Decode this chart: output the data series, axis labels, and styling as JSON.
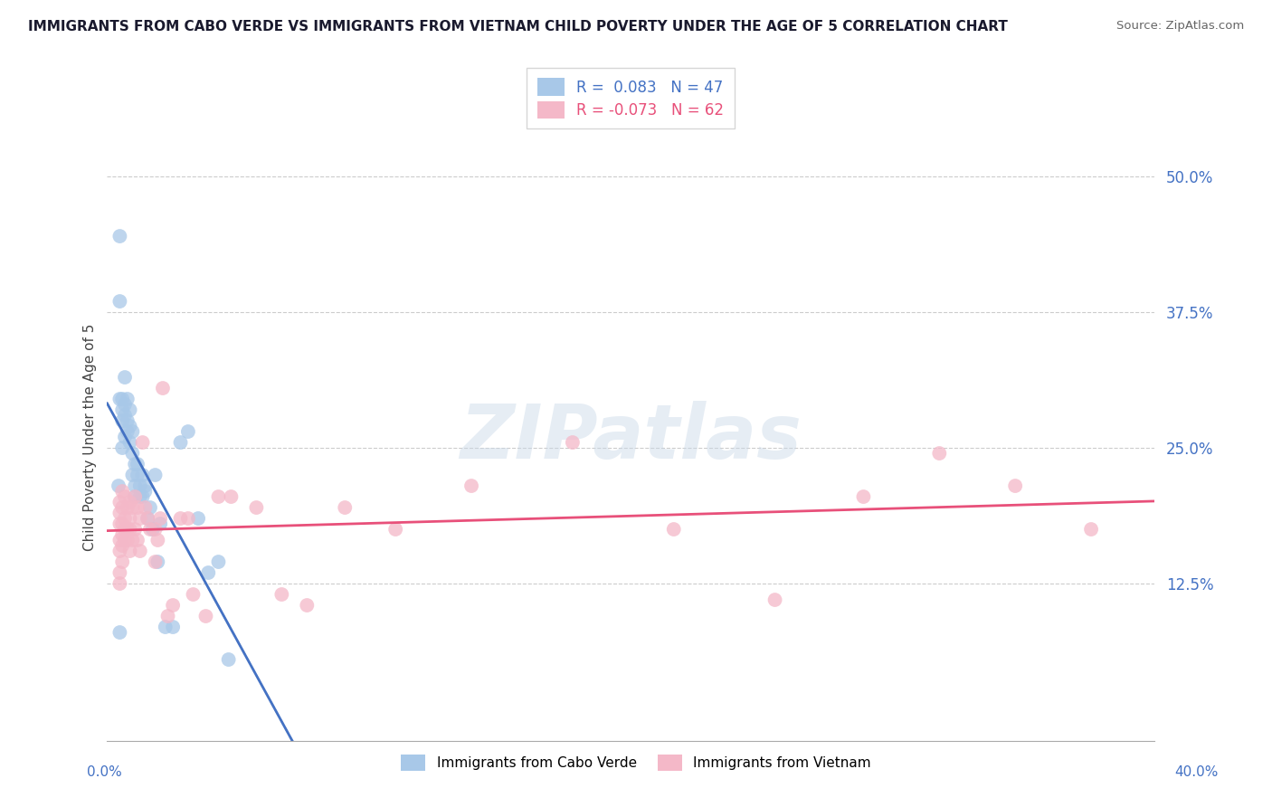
{
  "title": "IMMIGRANTS FROM CABO VERDE VS IMMIGRANTS FROM VIETNAM CHILD POVERTY UNDER THE AGE OF 5 CORRELATION CHART",
  "source": "Source: ZipAtlas.com",
  "ylabel": "Child Poverty Under the Age of 5",
  "ytick_vals": [
    0.125,
    0.25,
    0.375,
    0.5
  ],
  "ytick_labels": [
    "12.5%",
    "25.0%",
    "37.5%",
    "50.0%"
  ],
  "ylim": [
    -0.02,
    0.54
  ],
  "xlim": [
    -0.004,
    0.41
  ],
  "legend1_R": "0.083",
  "legend1_N": "47",
  "legend2_R": "-0.073",
  "legend2_N": "62",
  "color_blue": "#a8c8e8",
  "color_pink": "#f4b8c8",
  "color_blue_line": "#4472c4",
  "color_pink_line": "#e8507a",
  "color_dashed_line": "#b0b0b0",
  "watermark": "ZIPatlas",
  "cabo_verde_x": [
    0.0005,
    0.001,
    0.001,
    0.001,
    0.001,
    0.002,
    0.002,
    0.002,
    0.002,
    0.003,
    0.003,
    0.003,
    0.003,
    0.004,
    0.004,
    0.004,
    0.005,
    0.005,
    0.005,
    0.006,
    0.006,
    0.006,
    0.007,
    0.007,
    0.007,
    0.008,
    0.008,
    0.009,
    0.009,
    0.01,
    0.01,
    0.011,
    0.011,
    0.012,
    0.013,
    0.014,
    0.015,
    0.016,
    0.017,
    0.019,
    0.022,
    0.025,
    0.028,
    0.032,
    0.036,
    0.04,
    0.044
  ],
  "cabo_verde_y": [
    0.215,
    0.445,
    0.385,
    0.295,
    0.08,
    0.295,
    0.285,
    0.275,
    0.25,
    0.315,
    0.29,
    0.28,
    0.26,
    0.295,
    0.275,
    0.265,
    0.285,
    0.27,
    0.255,
    0.265,
    0.245,
    0.225,
    0.235,
    0.215,
    0.205,
    0.235,
    0.225,
    0.215,
    0.205,
    0.225,
    0.205,
    0.215,
    0.21,
    0.185,
    0.195,
    0.175,
    0.225,
    0.145,
    0.18,
    0.085,
    0.085,
    0.255,
    0.265,
    0.185,
    0.135,
    0.145,
    0.055
  ],
  "vietnam_x": [
    0.001,
    0.001,
    0.001,
    0.001,
    0.001,
    0.001,
    0.001,
    0.002,
    0.002,
    0.002,
    0.002,
    0.002,
    0.002,
    0.003,
    0.003,
    0.003,
    0.003,
    0.004,
    0.004,
    0.004,
    0.005,
    0.005,
    0.005,
    0.005,
    0.006,
    0.006,
    0.007,
    0.007,
    0.008,
    0.008,
    0.009,
    0.009,
    0.01,
    0.011,
    0.012,
    0.013,
    0.015,
    0.015,
    0.016,
    0.017,
    0.018,
    0.02,
    0.022,
    0.025,
    0.028,
    0.03,
    0.035,
    0.04,
    0.045,
    0.055,
    0.065,
    0.075,
    0.09,
    0.11,
    0.14,
    0.18,
    0.22,
    0.26,
    0.295,
    0.325,
    0.355,
    0.385
  ],
  "vietnam_y": [
    0.2,
    0.19,
    0.18,
    0.165,
    0.155,
    0.135,
    0.125,
    0.21,
    0.195,
    0.18,
    0.17,
    0.16,
    0.145,
    0.205,
    0.185,
    0.175,
    0.165,
    0.195,
    0.175,
    0.165,
    0.2,
    0.185,
    0.175,
    0.155,
    0.195,
    0.165,
    0.205,
    0.175,
    0.195,
    0.165,
    0.185,
    0.155,
    0.255,
    0.195,
    0.185,
    0.175,
    0.145,
    0.175,
    0.165,
    0.185,
    0.305,
    0.095,
    0.105,
    0.185,
    0.185,
    0.115,
    0.095,
    0.205,
    0.205,
    0.195,
    0.115,
    0.105,
    0.195,
    0.175,
    0.215,
    0.255,
    0.175,
    0.11,
    0.205,
    0.245,
    0.215,
    0.175
  ]
}
